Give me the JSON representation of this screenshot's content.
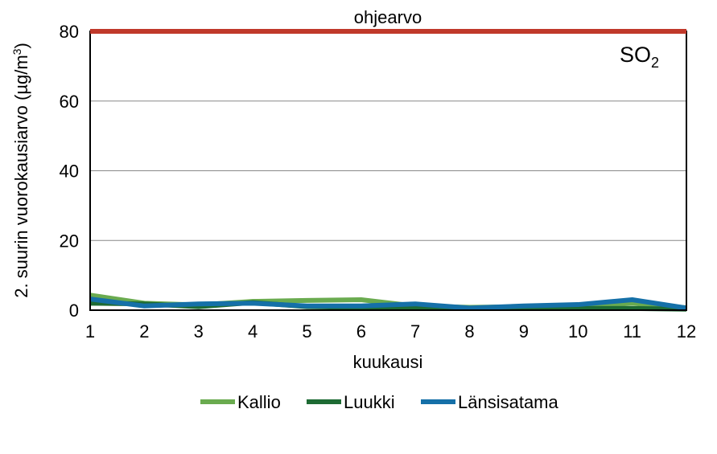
{
  "chart_data": {
    "type": "line",
    "title": "",
    "annotation": "SO",
    "annotation_sub": "2",
    "xlabel": "kuukausi",
    "ylabel": "2. suurin vuorokausiarvo (µg/m",
    "ylabel_sup": "3",
    "ylabel_end": ")",
    "ylim": [
      0,
      80
    ],
    "yticks": [
      "0",
      "20",
      "40",
      "60",
      "80"
    ],
    "x": [
      1,
      2,
      3,
      4,
      5,
      6,
      7,
      8,
      9,
      10,
      11,
      12
    ],
    "xticks": [
      "1",
      "2",
      "3",
      "4",
      "5",
      "6",
      "7",
      "8",
      "9",
      "10",
      "11",
      "12"
    ],
    "grid": true,
    "legend_position": "bottom",
    "reference_line": {
      "label": "ohjearvo",
      "value": 80,
      "color": "#C0392B"
    },
    "series": [
      {
        "name": "Kallio",
        "color": "#6AAB4F",
        "values": [
          4.3,
          2.0,
          1.5,
          2.5,
          2.8,
          3.0,
          1.2,
          0.8,
          1.0,
          1.0,
          2.0,
          0.7
        ]
      },
      {
        "name": "Luukki",
        "color": "#1E6B34",
        "values": [
          2.0,
          1.8,
          1.0,
          2.2,
          1.0,
          0.8,
          0.6,
          0.5,
          0.5,
          0.5,
          0.5,
          0.3
        ]
      },
      {
        "name": "Länsisatama",
        "color": "#1570A8",
        "values": [
          3.2,
          1.2,
          1.8,
          2.0,
          1.2,
          1.2,
          1.8,
          0.6,
          1.2,
          1.6,
          3.0,
          0.6
        ]
      }
    ]
  }
}
